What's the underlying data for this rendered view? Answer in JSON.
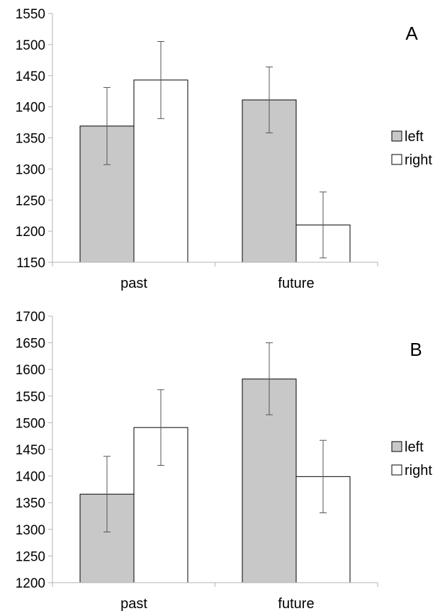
{
  "chart_data": [
    {
      "type": "bar",
      "panel_label": "A",
      "categories": [
        "past",
        "future"
      ],
      "ylim": [
        1150,
        1550
      ],
      "yticks": [
        1150,
        1200,
        1250,
        1300,
        1350,
        1400,
        1450,
        1500,
        1550
      ],
      "grid": false,
      "legend_position": "right",
      "series": [
        {
          "name": "left",
          "color": "#c8c8c8",
          "values": [
            1369,
            1411
          ],
          "err_low": [
            1307,
            1358
          ],
          "err_high": [
            1431,
            1464
          ]
        },
        {
          "name": "right",
          "color": "#ffffff",
          "values": [
            1443,
            1210
          ],
          "err_low": [
            1381,
            1157
          ],
          "err_high": [
            1505,
            1263
          ]
        }
      ]
    },
    {
      "type": "bar",
      "panel_label": "B",
      "categories": [
        "past",
        "future"
      ],
      "ylim": [
        1200,
        1700
      ],
      "yticks": [
        1200,
        1250,
        1300,
        1350,
        1400,
        1450,
        1500,
        1550,
        1600,
        1650,
        1700
      ],
      "grid": false,
      "legend_position": "right",
      "series": [
        {
          "name": "left",
          "color": "#c8c8c8",
          "values": [
            1366,
            1582
          ],
          "err_low": [
            1295,
            1515
          ],
          "err_high": [
            1437,
            1650
          ]
        },
        {
          "name": "right",
          "color": "#ffffff",
          "values": [
            1491,
            1399
          ],
          "err_low": [
            1420,
            1331
          ],
          "err_high": [
            1562,
            1467
          ]
        }
      ]
    }
  ]
}
